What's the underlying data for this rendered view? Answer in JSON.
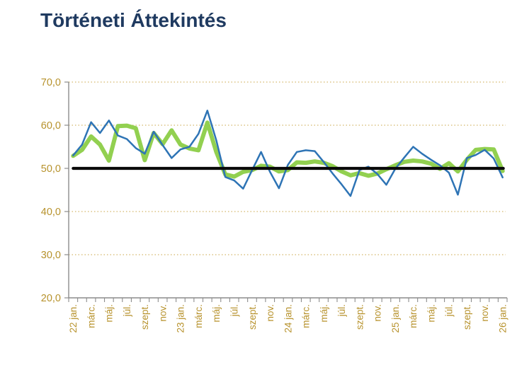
{
  "title": "Történeti Áttekintés",
  "chart_data": {
    "type": "line",
    "title": "Történeti Áttekintés",
    "ylim": [
      20,
      70
    ],
    "y_ticks": [
      {
        "value": 70,
        "label": "70,0"
      },
      {
        "value": 60,
        "label": "60,0"
      },
      {
        "value": 50,
        "label": "50,0"
      },
      {
        "value": 40,
        "label": "40,0"
      },
      {
        "value": 30,
        "label": "30,0"
      },
      {
        "value": 20,
        "label": "20,0"
      }
    ],
    "grid_values": [
      70,
      60,
      40,
      30
    ],
    "x_tick_labels": [
      "22 jan.",
      "márc.",
      "máj.",
      "júl.",
      "szept.",
      "nov.",
      "23 jan.",
      "márc.",
      "máj.",
      "júl.",
      "szept.",
      "nov.",
      "24 jan.",
      "márc.",
      "máj.",
      "júl.",
      "szept.",
      "nov.",
      "25 jan.",
      "márc.",
      "máj.",
      "júl.",
      "szept.",
      "nov.",
      "26 jan."
    ],
    "x_label_step_months": 2,
    "months_count": 49,
    "threshold": {
      "value": 50.0,
      "color": "#0a0a0a",
      "stroke_width": 4.2
    },
    "series": [
      {
        "id": "green-thick-line",
        "color": "#92D050",
        "stroke_width": 6,
        "values": [
          52.9,
          54.3,
          57.4,
          55.5,
          51.8,
          59.8,
          59.9,
          59.3,
          51.9,
          58.2,
          55.6,
          58.8,
          55.5,
          54.6,
          54.2,
          60.6,
          53.8,
          48.6,
          48.1,
          49.2,
          49.6,
          50.6,
          50.4,
          49.3,
          49.6,
          51.4,
          51.3,
          51.6,
          51.3,
          50.5,
          49.3,
          48.4,
          48.9,
          48.3,
          48.8,
          49.8,
          50.7,
          51.5,
          51.8,
          51.6,
          51.1,
          49.9,
          51.2,
          49.3,
          52.0,
          54.3,
          54.5,
          54.4,
          49.4
        ]
      },
      {
        "id": "blue-thin-line",
        "color": "#2E74B5",
        "stroke_width": 2.5,
        "values": [
          53.0,
          55.5,
          60.7,
          58.2,
          61.1,
          57.6,
          56.8,
          54.7,
          53.4,
          58.5,
          55.4,
          52.4,
          54.4,
          55.0,
          58.0,
          63.4,
          56.5,
          48.0,
          47.2,
          45.3,
          49.6,
          53.8,
          49.2,
          45.4,
          50.8,
          53.8,
          54.2,
          54.0,
          51.5,
          48.8,
          46.3,
          43.6,
          49.6,
          50.4,
          48.7,
          46.2,
          49.9,
          52.5,
          55.0,
          53.4,
          52.0,
          50.7,
          49.0,
          43.9,
          52.4,
          53.1,
          54.3,
          52.3,
          47.9
        ]
      }
    ],
    "legend": "none",
    "grid_on": true,
    "colors": {
      "title": "#1F3A60",
      "axis_labels": "#B7922C",
      "gridlines": "#C9A545",
      "axis_lines": "#8C8C8C"
    }
  }
}
